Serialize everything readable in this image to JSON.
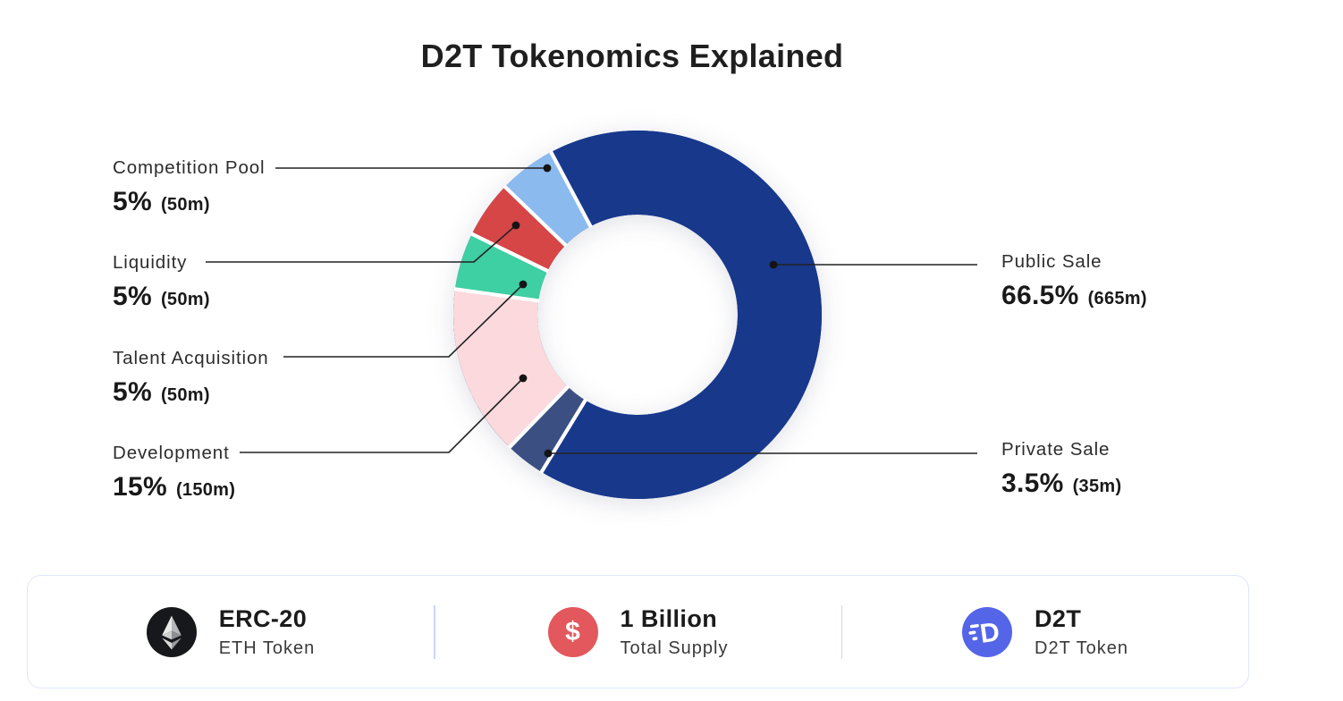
{
  "title": "D2T Tokenomics Explained",
  "chart_data": {
    "type": "pie",
    "subtype": "donut",
    "title": "D2T Tokenomics Explained",
    "direction": "clockwise",
    "start_angle_deg": -28,
    "legend_position": "callouts",
    "segments": [
      {
        "label": "Public Sale",
        "percent": 66.5,
        "amount": "665m",
        "color": "#18388c"
      },
      {
        "label": "Private Sale",
        "percent": 3.5,
        "amount": "35m",
        "color": "#3b4f82"
      },
      {
        "label": "Development",
        "percent": 15,
        "amount": "150m",
        "color": "#fbd9dd"
      },
      {
        "label": "Talent Acquisition",
        "percent": 5,
        "amount": "50m",
        "color": "#3ecfa3"
      },
      {
        "label": "Liquidity",
        "percent": 5,
        "amount": "50m",
        "color": "#d64646"
      },
      {
        "label": "Competition Pool",
        "percent": 5,
        "amount": "50m",
        "color": "#8bbaee"
      }
    ]
  },
  "footer": {
    "items": [
      {
        "icon": "eth-icon",
        "icon_bg": "#17181c",
        "icon_glyph": "",
        "title": "ERC-20",
        "subtitle": "ETH Token"
      },
      {
        "icon": "dollar-icon",
        "icon_bg": "#e2585c",
        "icon_glyph": "$",
        "title": "1 Billion",
        "subtitle": "Total Supply"
      },
      {
        "icon": "d2t-icon",
        "icon_bg": "#5465e8",
        "icon_glyph": "D",
        "title": "D2T",
        "subtitle": "D2T Token"
      }
    ]
  },
  "colors": {
    "background": "#ffffff",
    "title_text": "#1f1f1f",
    "leader_line": "#222222",
    "card_border": "#dfe7fb",
    "divider": "#c9d6f6"
  }
}
